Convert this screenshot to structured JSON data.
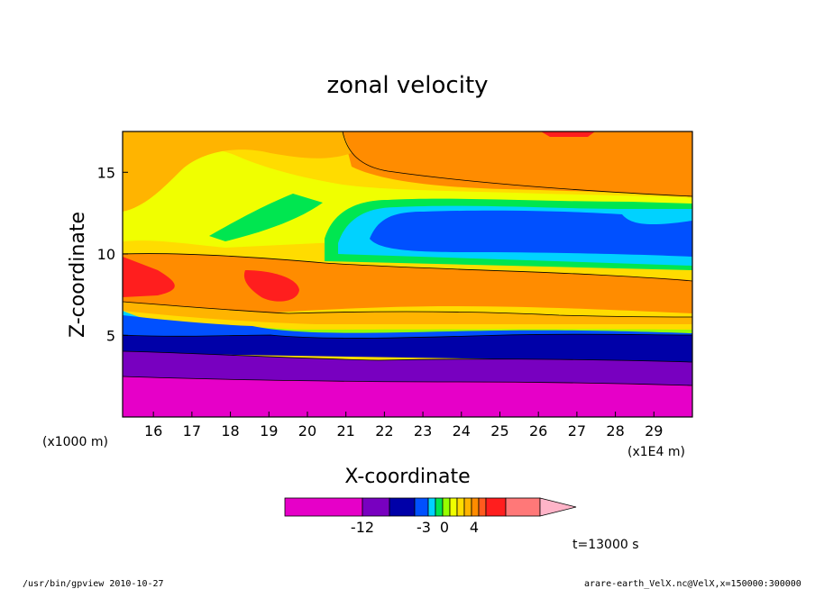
{
  "chart_data": {
    "type": "heatmap",
    "title": "zonal velocity",
    "xlabel": "X-coordinate",
    "ylabel": "Z-coordinate",
    "x_unit_left": "(x1000 m)",
    "x_unit_right": "(x1E4 m)",
    "xlim": [
      15.2,
      30.0
    ],
    "ylim": [
      0,
      17.5
    ],
    "x_ticks": [
      "16",
      "17",
      "18",
      "19",
      "20",
      "21",
      "22",
      "23",
      "24",
      "25",
      "26",
      "27",
      "28",
      "29"
    ],
    "y_ticks": [
      "5",
      "10",
      "15"
    ],
    "colorbar": {
      "colors": [
        "#e600c8",
        "#7800c0",
        "#0000a8",
        "#0050ff",
        "#00d2ff",
        "#00e650",
        "#96ff00",
        "#f0ff00",
        "#ffdc00",
        "#ffb400",
        "#ff8c00",
        "#ff5a1e",
        "#ff1e1e",
        "#ff7878",
        "#ffb4c8"
      ],
      "labels": [
        "-12",
        "-3",
        "0",
        "4"
      ]
    },
    "time_label": "t=13000 s"
  },
  "footer": {
    "left": "/usr/bin/gpview   2010-10-27",
    "right": "arare-earth_VelX.nc@VelX,x=150000:300000"
  }
}
